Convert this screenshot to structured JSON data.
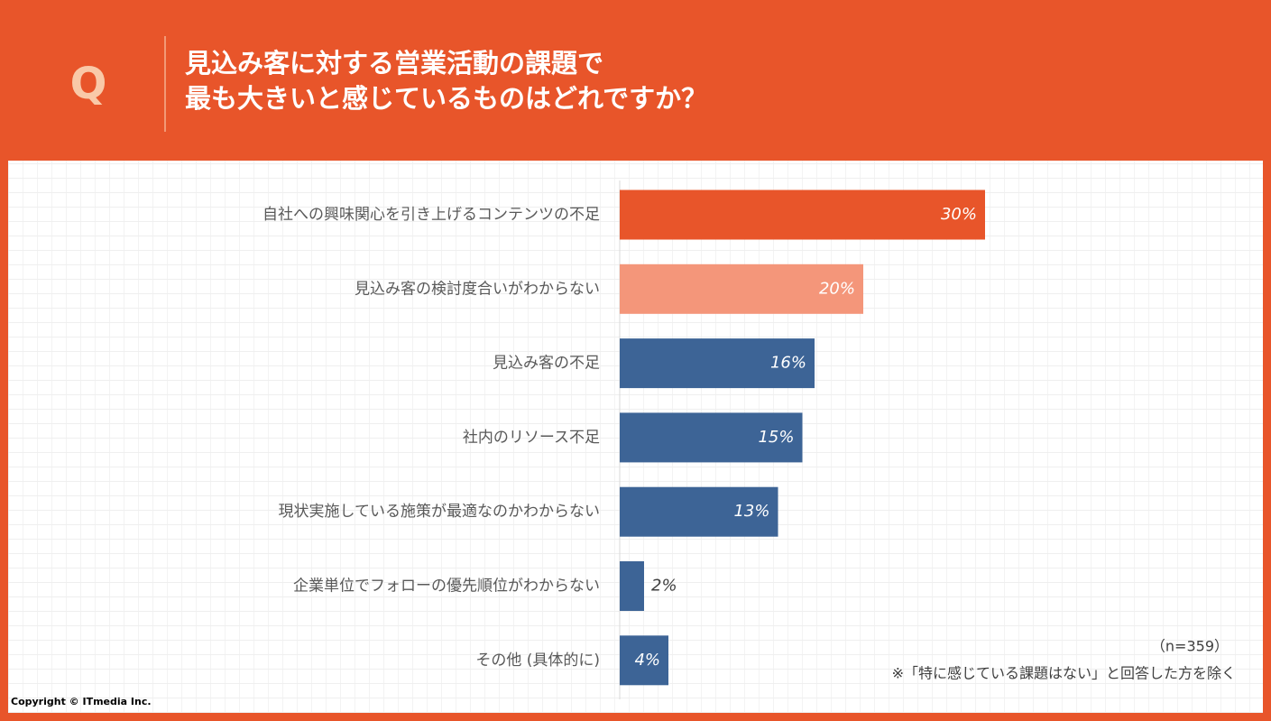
{
  "header": {
    "badge": "Q"
  },
  "chart_data": {
    "type": "bar",
    "title": [
      "見込み客に対する営業活動の課題で",
      "最も大きいと感じているものはどれですか？"
    ],
    "categories": [
      "自社への興味関心を引き上げるコンテンツの不足",
      "見込み客の検討度合いがわからない",
      "見込み客の不足",
      "社内のリソース不足",
      "現状実施している施策が最適なのかわからない",
      "企業単位でフォローの優先順位がわからない",
      "その他 (具体的に)"
    ],
    "values": [
      30,
      20,
      16,
      15,
      13,
      2,
      4
    ],
    "value_labels": [
      "30%",
      "20%",
      "16%",
      "15%",
      "13%",
      "2%",
      "4%"
    ],
    "colors": [
      "#e8552a",
      "#f4967a",
      "#3d6496",
      "#3d6496",
      "#3d6496",
      "#3d6496",
      "#3d6496"
    ],
    "annotations": [
      "（n=359）",
      "※「特に感じている課題はない」と回答した方を除く"
    ]
  },
  "footer": {
    "copyright": "Copyright © ITmedia Inc."
  }
}
